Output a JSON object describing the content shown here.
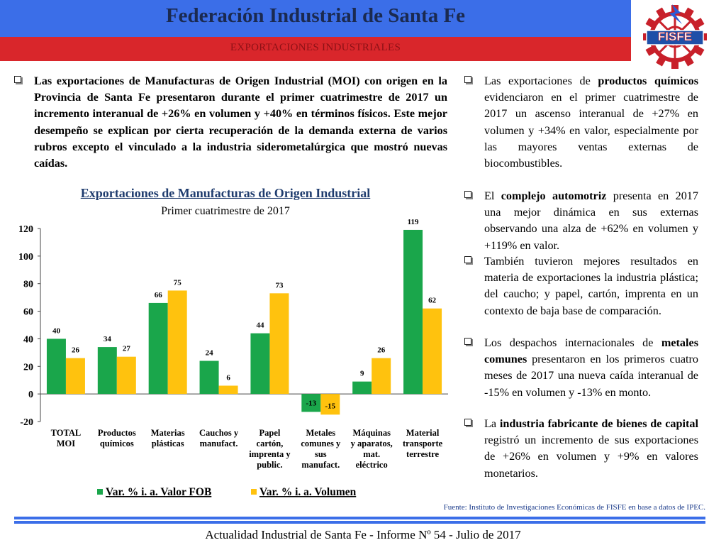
{
  "header": {
    "title": "Federación Industrial de Santa Fe",
    "subtitle": "EXPORTACIONES INDUSTRIALES",
    "logo_text": "FISFE",
    "colors": {
      "blue": "#3b6ee8",
      "red": "#d9262b"
    }
  },
  "left_paragraph": "Las exportaciones de Manufacturas de Origen Industrial (MOI) con origen en la Provincia de Santa Fe presentaron durante el primer cuatrimestre de 2017 un incremento interanual de +26% en volumen y +40% en términos físicos. Este mejor desempeño se explican por cierta recuperación de la demanda externa de varios rubros excepto el vinculado a la industria siderometalúrgica que mostró nuevas caídas.",
  "right_bullets": [
    {
      "pre": "Las exportaciones de ",
      "bold": "productos químicos",
      "post": " evidenciaron en el primer cuatrimestre de 2017 un ascenso interanual de +27% en volumen y +34% en valor, especialmente por las mayores ventas externas de biocombustibles."
    },
    {
      "pre": "El ",
      "bold": "complejo automotriz",
      "post": " presenta en 2017 una mejor dinámica en sus externas observando una alza de +62% en volumen y +119% en valor."
    },
    {
      "pre": "También tuvieron mejores resultados en materia de exportaciones la industria plástica; del caucho; y papel, cartón, imprenta en un contexto de baja base de comparación.",
      "bold": "",
      "post": ""
    },
    {
      "pre": "Los despachos internacionales de ",
      "bold": "metales comunes",
      "post": " presentaron en los primeros cuatro meses de 2017 una nueva caída interanual de -15% en volumen y -13% en monto."
    },
    {
      "pre": "La ",
      "bold": "industria fabricante de bienes de capital",
      "post": " registró un incremento de sus exportaciones de +26% en volumen y +9% en valores monetarios."
    }
  ],
  "chart_data": {
    "type": "bar",
    "title": "Exportaciones de Manufacturas de Origen Industrial",
    "subtitle": "Primer cuatrimestre de 2017",
    "categories": [
      [
        "TOTAL",
        "MOI"
      ],
      [
        "Productos",
        "químicos"
      ],
      [
        "Materias",
        "plásticas"
      ],
      [
        "Cauchos y",
        "manufact."
      ],
      [
        "Papel",
        "cartón,",
        "imprenta y",
        "public."
      ],
      [
        "Metales",
        "comunes y",
        "sus",
        "manufact."
      ],
      [
        "Máquinas",
        "y aparatos,",
        "mat.",
        "eléctrico"
      ],
      [
        "Material",
        "transporte",
        "terrestre"
      ]
    ],
    "series": [
      {
        "name": "Var. % i. a. Valor FOB",
        "color": "#1aa64b",
        "values": [
          40,
          34,
          66,
          24,
          44,
          -13,
          9,
          119
        ]
      },
      {
        "name": "Var. % i. a. Volumen",
        "color": "#ffc20e",
        "values": [
          26,
          27,
          75,
          6,
          73,
          -15,
          26,
          62
        ]
      }
    ],
    "ylim": [
      -20,
      120
    ],
    "yticks": [
      -20,
      0,
      20,
      40,
      60,
      80,
      100,
      120
    ],
    "legend_position": "bottom",
    "grid": false
  },
  "source": "Fuente: Instituto de Investigaciones Económicas de FISFE en base a datos de IPEC.",
  "footer": "Actualidad Industrial de Santa Fe - Informe Nº 54 - Julio de 2017"
}
